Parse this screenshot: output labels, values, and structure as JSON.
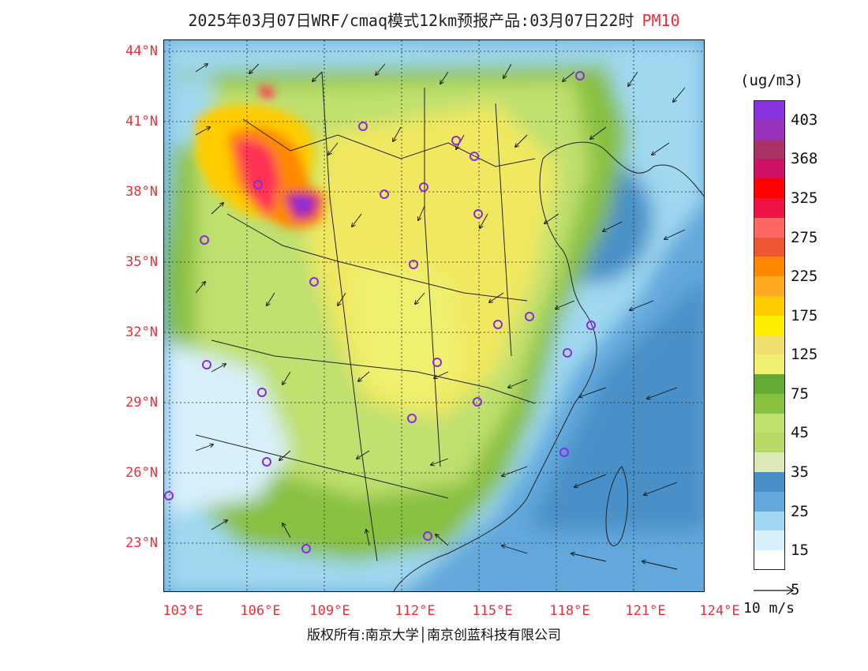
{
  "header": {
    "title": "2025年03月07日WRF/cmaq模式12km预报产品:03月07日22时",
    "variable": "PM10"
  },
  "map": {
    "latitude_labels": [
      "44°N",
      "41°N",
      "38°N",
      "35°N",
      "32°N",
      "29°N",
      "26°N",
      "23°N"
    ],
    "longitude_labels": [
      "103°E",
      "106°E",
      "109°E",
      "112°E",
      "115°E",
      "118°E",
      "121°E",
      "124°E"
    ],
    "colors": {
      "sea_blue": "#4a90c8",
      "light_blue": "#a8d8f0",
      "pale_green": "#c8e090",
      "green": "#7ab848",
      "yellow": "#f0e860",
      "orange": "#f5a623",
      "red": "#e8303a",
      "purple": "#8a2be2",
      "marker": "#8a2be2"
    }
  },
  "colorbar": {
    "unit": "(ug/m3)",
    "colors": [
      "#8833dd",
      "#9933bb",
      "#aa3366",
      "#cc1166",
      "#ff0000",
      "#ee1144",
      "#ff6666",
      "#ee5533",
      "#ff8800",
      "#ffaa22",
      "#ffcc00",
      "#ffee00",
      "#f0e070",
      "#f0f070",
      "#66aa33",
      "#88c040",
      "#c0e070",
      "#b8d868",
      "#dde8b8",
      "#4a90c8",
      "#62a8dc",
      "#a0d8f2",
      "#d8f0fb",
      "#ffffff"
    ],
    "labels": [
      "403",
      "368",
      "325",
      "275",
      "225",
      "175",
      "125",
      "75",
      "45",
      "35",
      "25",
      "15",
      "5"
    ]
  },
  "wind_reference": {
    "label": "10 m/s"
  },
  "footer": {
    "copyright": "版权所有:南京大学│南京创蓝科技有限公司"
  }
}
